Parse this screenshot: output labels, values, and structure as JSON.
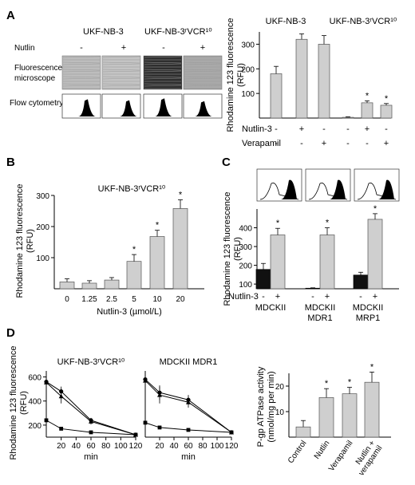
{
  "chart_data": [
    {
      "panel": "A",
      "type": "bar",
      "ylabel": "Rhodamine 123 fluorescence (RFU)",
      "ylim": [
        0,
        350
      ],
      "yticks": [
        100,
        200,
        300
      ],
      "group_labels": [
        "UKF-NB-3",
        "UKF-NB-3ʳVCR¹⁰"
      ],
      "row_labels": [
        "Nutlin-3",
        "Verapamil"
      ],
      "conditions": [
        {
          "nutlin": "-",
          "verapamil": "-"
        },
        {
          "nutlin": "+",
          "verapamil": "-"
        },
        {
          "nutlin": "-",
          "verapamil": "+"
        },
        {
          "nutlin": "-",
          "verapamil": "-"
        },
        {
          "nutlin": "+",
          "verapamil": "-"
        },
        {
          "nutlin": "-",
          "verapamil": "+"
        }
      ],
      "values": [
        180,
        320,
        300,
        3,
        62,
        52
      ],
      "errors": [
        30,
        22,
        35,
        2,
        8,
        7
      ],
      "significant": [
        false,
        false,
        false,
        false,
        true,
        true
      ],
      "left_panel": {
        "col_headers": [
          "UKF-NB-3",
          "UKF-NB-3ʳVCR¹⁰"
        ],
        "nutlin_label": "Nutlin",
        "nutlin_signs": [
          "-",
          "+",
          "-",
          "+"
        ],
        "row_labels": [
          "Fluorescence microscope",
          "Flow cytometry"
        ]
      }
    },
    {
      "panel": "B",
      "type": "bar",
      "title": "UKF-NB-3ʳVCR¹⁰",
      "xlabel": "Nutlin-3 (µmol/L)",
      "ylabel": "Rhodamine 123 fluorescence (RFU)",
      "ylim": [
        0,
        300
      ],
      "yticks": [
        100,
        200,
        300
      ],
      "categories": [
        "0",
        "1.25",
        "2.5",
        "5",
        "10",
        "20"
      ],
      "values": [
        22,
        18,
        28,
        88,
        168,
        258
      ],
      "errors": [
        10,
        8,
        8,
        22,
        20,
        28
      ],
      "significant": [
        false,
        false,
        false,
        true,
        true,
        true
      ]
    },
    {
      "panel": "C",
      "type": "bar",
      "ylabel": "Rhodamine 123 fluorescence (RFU)",
      "ylim": [
        75,
        500
      ],
      "yticks": [
        100,
        200,
        300,
        400
      ],
      "row_label": "Nutlin-3",
      "signs": [
        "-",
        "+",
        "-",
        "+",
        "-",
        "+"
      ],
      "groups": [
        {
          "label1": "MDCKII",
          "label2": ""
        },
        {
          "label1": "MDCKII",
          "label2": "MDR1"
        },
        {
          "label1": "MDCKII",
          "label2": "MRP1"
        }
      ],
      "values": [
        178,
        362,
        78,
        362,
        148,
        445
      ],
      "errors": [
        32,
        35,
        2,
        38,
        15,
        30
      ],
      "significant": [
        false,
        true,
        false,
        true,
        false,
        true
      ],
      "colors": [
        "#111111",
        "#cfcfcf",
        "#111111",
        "#cfcfcf",
        "#111111",
        "#cfcfcf"
      ]
    },
    {
      "panel": "D",
      "type": "line",
      "title": "UKF-NB-3ʳVCR¹⁰",
      "xlabel": "min",
      "ylabel": "Rhodamine 123 fluorescence (RFU)",
      "ylim": [
        100,
        650
      ],
      "yticks": [
        200,
        400,
        600
      ],
      "xticks": [
        20,
        40,
        60,
        80,
        100,
        120
      ],
      "series": [
        {
          "marker": "circle",
          "x": [
            0,
            20,
            60,
            120
          ],
          "y": [
            560,
            480,
            240,
            120
          ],
          "err": [
            0,
            40,
            20,
            0
          ]
        },
        {
          "marker": "triangle",
          "x": [
            0,
            20,
            60,
            120
          ],
          "y": [
            555,
            440,
            230,
            120
          ],
          "err": [
            0,
            60,
            25,
            0
          ]
        },
        {
          "marker": "square",
          "x": [
            0,
            20,
            60,
            120
          ],
          "y": [
            240,
            170,
            140,
            120
          ],
          "err": [
            0,
            0,
            0,
            0
          ]
        }
      ]
    },
    {
      "panel": "D2",
      "type": "line",
      "title": "MDCKII MDR1",
      "xlabel": "min",
      "ylim": [
        100,
        650
      ],
      "xticks": [
        20,
        40,
        60,
        80,
        100,
        120
      ],
      "series": [
        {
          "marker": "circle",
          "x": [
            0,
            20,
            60,
            120
          ],
          "y": [
            580,
            470,
            410,
            140
          ],
          "err": [
            0,
            60,
            40,
            0
          ]
        },
        {
          "marker": "triangle",
          "x": [
            0,
            20,
            60,
            120
          ],
          "y": [
            570,
            450,
            390,
            140
          ],
          "err": [
            0,
            70,
            45,
            0
          ]
        },
        {
          "marker": "square",
          "x": [
            0,
            20,
            60,
            120
          ],
          "y": [
            220,
            180,
            160,
            140
          ],
          "err": [
            0,
            0,
            0,
            0
          ]
        }
      ]
    },
    {
      "panel": "D3",
      "type": "bar",
      "ylabel": "P-gp ATPase activity (nmol/mg per min)",
      "ylim": [
        0,
        25
      ],
      "yticks": [
        10,
        20
      ],
      "categories": [
        "Control",
        "Nutlin",
        "Verapamil",
        "Nutlin + verapamil"
      ],
      "values": [
        4,
        15.5,
        17,
        21.5
      ],
      "errors": [
        2.5,
        3.5,
        2.5,
        4
      ],
      "significant": [
        false,
        true,
        true,
        true
      ]
    }
  ],
  "panel_letters": [
    "A",
    "B",
    "C",
    "D"
  ]
}
